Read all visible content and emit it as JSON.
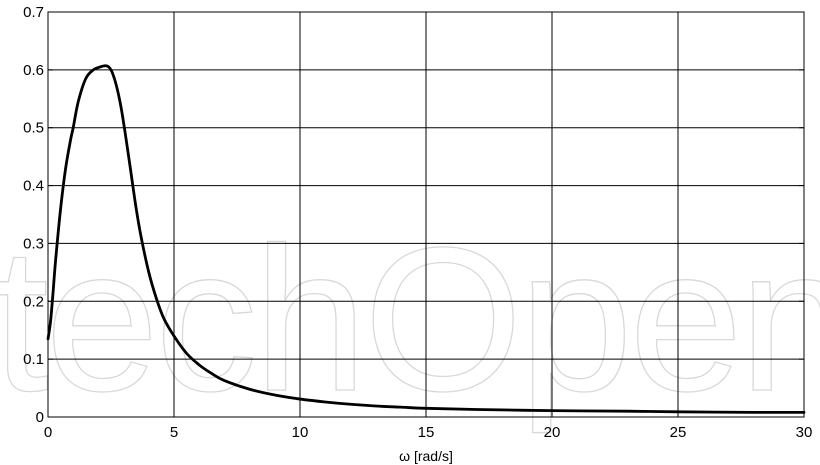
{
  "chart_data": {
    "type": "line",
    "title": "",
    "xlabel": "ω [rad/s]",
    "ylabel": "",
    "xlim": [
      0,
      30
    ],
    "ylim": [
      0,
      0.7
    ],
    "xticks": [
      "0",
      "5",
      "10",
      "15",
      "20",
      "25",
      "30"
    ],
    "yticks": [
      "0",
      "0.1",
      "0.2",
      "0.3",
      "0.4",
      "0.5",
      "0.6",
      "0.7"
    ],
    "grid": true,
    "legend": "none",
    "watermark": "techOpen",
    "series": [
      {
        "color": "#000000",
        "x": [
          0,
          0.1,
          0.2,
          0.3,
          0.5,
          0.7,
          0.9,
          1.0,
          1.2,
          1.5,
          1.8,
          2.0,
          2.3,
          2.5,
          2.7,
          2.9,
          3.1,
          3.3,
          3.5,
          3.7,
          4.0,
          4.3,
          4.6,
          5.0,
          5.5,
          6.0,
          6.5,
          7.0,
          8.0,
          9.0,
          10.0,
          11.0,
          12.0,
          13.0,
          14.0,
          15.0,
          17.0,
          20.0,
          23.0,
          25.0,
          28.0,
          30.0
        ],
        "values": [
          0.135,
          0.165,
          0.215,
          0.27,
          0.36,
          0.43,
          0.48,
          0.5,
          0.545,
          0.585,
          0.6,
          0.604,
          0.607,
          0.6,
          0.575,
          0.535,
          0.48,
          0.42,
          0.36,
          0.31,
          0.25,
          0.205,
          0.17,
          0.14,
          0.11,
          0.09,
          0.075,
          0.063,
          0.048,
          0.038,
          0.031,
          0.026,
          0.022,
          0.019,
          0.017,
          0.015,
          0.013,
          0.011,
          0.01,
          0.009,
          0.008,
          0.008
        ]
      }
    ]
  }
}
